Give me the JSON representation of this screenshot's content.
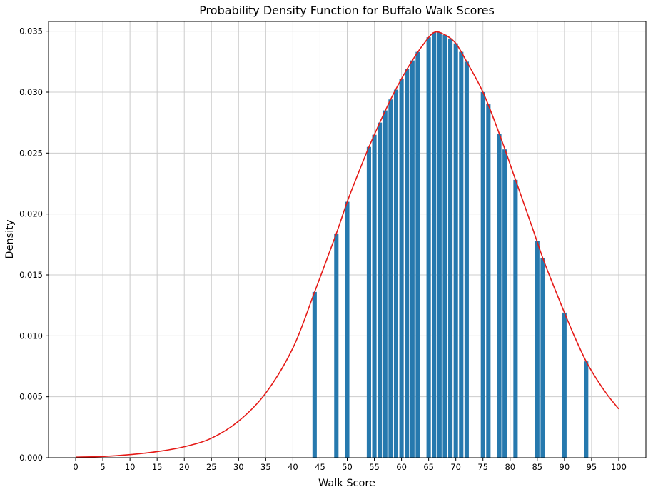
{
  "chart_data": {
    "type": "bar",
    "title": "Probability Density Function for Buffalo Walk Scores",
    "xlabel": "Walk Score",
    "ylabel": "Density",
    "xlim": [
      -5,
      105
    ],
    "ylim": [
      0,
      0.0358
    ],
    "grid": true,
    "legend": "none",
    "bar_color": "#2679ae",
    "curve_color": "#e51a17",
    "grid_color": "#cccccc",
    "spine_color": "#000000",
    "xticks": [
      0,
      5,
      10,
      15,
      20,
      25,
      30,
      35,
      40,
      45,
      50,
      55,
      60,
      65,
      70,
      75,
      80,
      85,
      90,
      95,
      100
    ],
    "yticks": [
      0.0,
      0.005,
      0.01,
      0.015,
      0.02,
      0.025,
      0.03,
      0.035
    ],
    "bar_width": 0.8,
    "bars": {
      "x": [
        44,
        48,
        50,
        54,
        55,
        56,
        57,
        58,
        59,
        60,
        61,
        62,
        63,
        65,
        66,
        67,
        68,
        69,
        70,
        71,
        72,
        75,
        76,
        78,
        79,
        81,
        85,
        86,
        90,
        94
      ],
      "height": [
        0.0136,
        0.0184,
        0.021,
        0.0255,
        0.0265,
        0.0275,
        0.0285,
        0.0294,
        0.0302,
        0.0311,
        0.0319,
        0.0326,
        0.0333,
        0.0345,
        0.0349,
        0.0349,
        0.0347,
        0.0344,
        0.034,
        0.0333,
        0.0325,
        0.03,
        0.029,
        0.0266,
        0.0253,
        0.0228,
        0.0178,
        0.0164,
        0.0119,
        0.0079
      ]
    },
    "curve": {
      "x": [
        0,
        5,
        10,
        15,
        20,
        25,
        30,
        35,
        40,
        44,
        48,
        50,
        52,
        54,
        56,
        58,
        60,
        62,
        64,
        66,
        68,
        70,
        72,
        75,
        78,
        81,
        84,
        86,
        88,
        90,
        92,
        94,
        96,
        98,
        100
      ],
      "y": [
        5e-05,
        0.0001,
        0.00025,
        0.0005,
        0.0009,
        0.0016,
        0.003,
        0.0053,
        0.009,
        0.0136,
        0.0184,
        0.021,
        0.0233,
        0.0255,
        0.0275,
        0.0294,
        0.0311,
        0.0326,
        0.0339,
        0.0349,
        0.0347,
        0.034,
        0.0325,
        0.03,
        0.0266,
        0.0228,
        0.019,
        0.0164,
        0.0141,
        0.0119,
        0.0098,
        0.0079,
        0.0064,
        0.0051,
        0.004
      ]
    }
  }
}
